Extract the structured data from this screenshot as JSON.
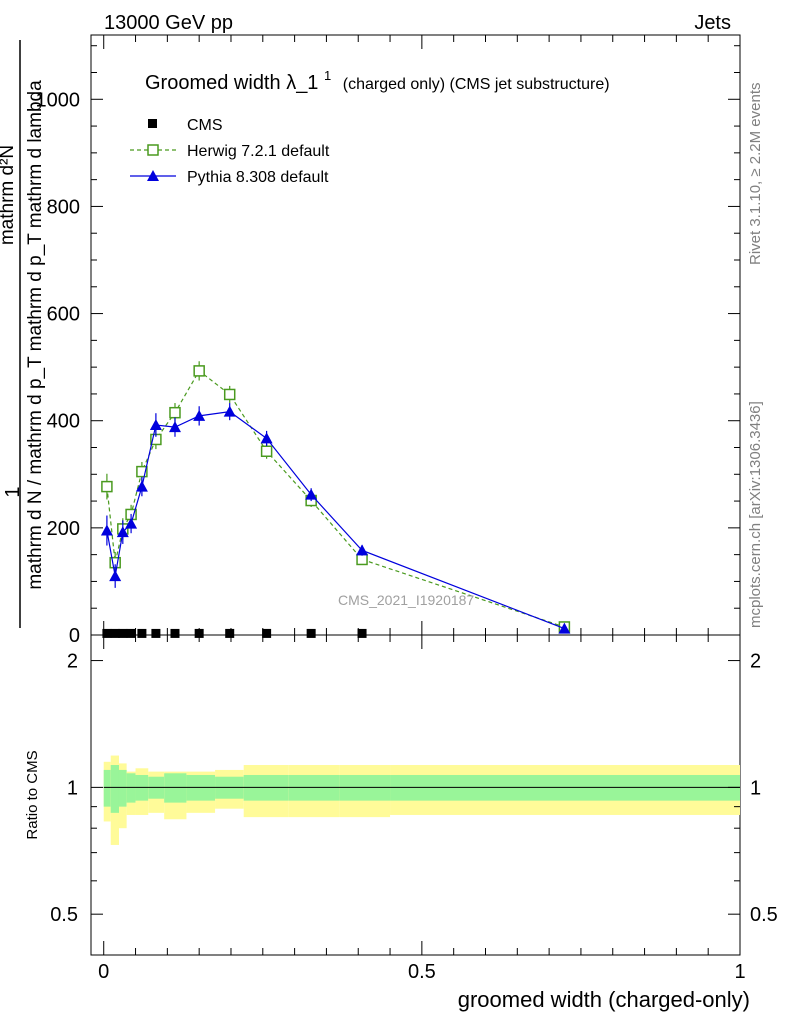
{
  "header": {
    "left": "13000 GeV pp",
    "right": "Jets"
  },
  "side_labels": {
    "rivet": "Rivet 3.1.10, ≥ 2.2M events",
    "mcplots": "mcplots.cern.ch [arXiv:1306.3436]"
  },
  "watermark": "CMS_2021_I1920187",
  "main": {
    "title_main": "Groomed width",
    "title_symbol": "λ_1",
    "title_sup": "1",
    "title_note": "(charged only) (CMS jet substructure)",
    "ylabel_num": "1",
    "ylabel_den": "mathrm d N / mathrm d p_T mathrm d p_T mathrm d lambda",
    "ylabel_num2": "mathrm d²N"
  },
  "ratio": {
    "ylabel": "Ratio to CMS"
  },
  "xaxis": {
    "label": "groomed width (charged-only)"
  },
  "colors": {
    "herwig": "#4a9a1f",
    "pythia": "#0000dd",
    "band_inner": "#99f599",
    "band_outer": "#fffb99"
  },
  "chart_data": [
    {
      "type": "line",
      "panel": "main",
      "xlim": [
        -0.02,
        1.0
      ],
      "ylim": [
        0,
        1120
      ],
      "x_ticks": [
        0,
        0.5,
        1
      ],
      "y_ticks": [
        0,
        200,
        400,
        600,
        800,
        1000
      ],
      "legend_position": "top-left",
      "series": [
        {
          "name": "CMS",
          "marker": "square",
          "x": [
            0.005,
            0.018,
            0.03,
            0.043,
            0.06,
            0.082,
            0.112,
            0.15,
            0.198,
            0.256,
            0.326,
            0.406
          ],
          "y": [
            2,
            2,
            2,
            2,
            2,
            2,
            2,
            2,
            2,
            2,
            2,
            2
          ]
        },
        {
          "name": "Herwig 7.2.1 default",
          "marker": "open-square",
          "style": "dashed",
          "x": [
            0.005,
            0.018,
            0.03,
            0.043,
            0.06,
            0.082,
            0.112,
            0.15,
            0.198,
            0.256,
            0.326,
            0.406,
            0.724
          ],
          "y": [
            277,
            135,
            198,
            225,
            305,
            365,
            415,
            493,
            449,
            343,
            251,
            141,
            15
          ],
          "err": [
            24,
            20,
            20,
            18,
            18,
            18,
            18,
            18,
            16,
            14,
            12,
            10,
            4
          ]
        },
        {
          "name": "Pythia 8.308 default",
          "marker": "triangle",
          "style": "solid",
          "x": [
            0.005,
            0.018,
            0.03,
            0.043,
            0.06,
            0.082,
            0.112,
            0.15,
            0.198,
            0.256,
            0.326,
            0.406,
            0.724
          ],
          "y": [
            195,
            110,
            192,
            208,
            277,
            392,
            388,
            409,
            417,
            367,
            262,
            158,
            12
          ],
          "err": [
            28,
            22,
            22,
            18,
            18,
            22,
            18,
            18,
            16,
            14,
            12,
            10,
            4
          ]
        }
      ]
    },
    {
      "type": "area",
      "panel": "ratio",
      "ylim": [
        0.4,
        2.3
      ],
      "y_ticks": [
        0.5,
        1,
        2
      ],
      "edges": [
        0,
        0.011,
        0.024,
        0.036,
        0.05,
        0.07,
        0.095,
        0.13,
        0.175,
        0.22,
        0.29,
        0.37,
        0.45,
        1.0
      ],
      "inner_lo": [
        0.9,
        0.87,
        0.9,
        0.92,
        0.93,
        0.94,
        0.92,
        0.93,
        0.94,
        0.93,
        0.93,
        0.93,
        0.93
      ],
      "inner_hi": [
        1.1,
        1.13,
        1.1,
        1.08,
        1.07,
        1.06,
        1.08,
        1.07,
        1.06,
        1.07,
        1.07,
        1.07,
        1.07
      ],
      "outer_lo": [
        0.83,
        0.73,
        0.8,
        0.86,
        0.86,
        0.87,
        0.84,
        0.87,
        0.89,
        0.85,
        0.85,
        0.85,
        0.86
      ],
      "outer_hi": [
        1.15,
        1.19,
        1.14,
        1.09,
        1.11,
        1.09,
        1.09,
        1.09,
        1.1,
        1.13,
        1.13,
        1.13,
        1.13
      ]
    }
  ]
}
